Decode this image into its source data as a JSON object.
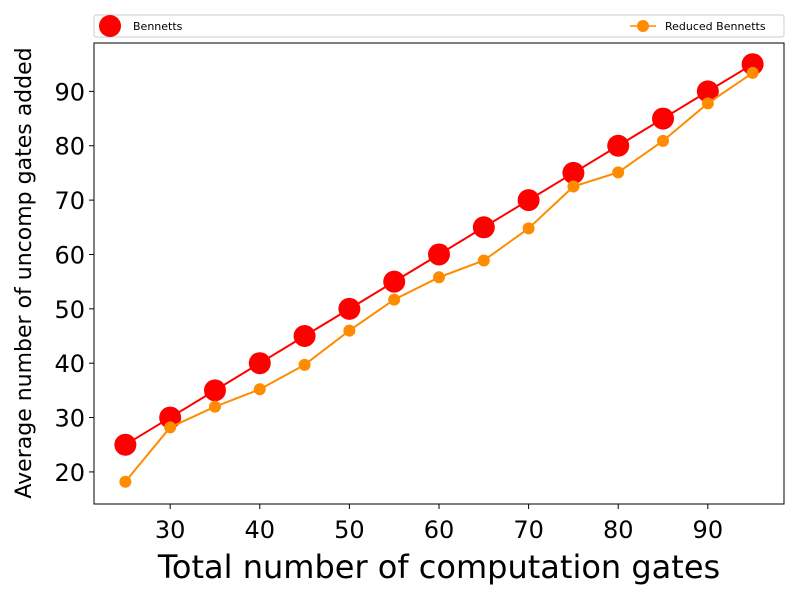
{
  "chart_data": {
    "type": "line",
    "xlabel": "Total number of computation gates",
    "ylabel": "Average number of uncomp gates added",
    "xlim": [
      21.5,
      98.5
    ],
    "ylim": [
      14.1,
      98.9
    ],
    "xticks": [
      30,
      40,
      50,
      60,
      70,
      80,
      90
    ],
    "yticks": [
      20,
      30,
      40,
      50,
      60,
      70,
      80,
      90
    ],
    "x": [
      25,
      30,
      35,
      40,
      45,
      50,
      55,
      60,
      65,
      70,
      75,
      80,
      85,
      90,
      95
    ],
    "series": [
      {
        "name": "Bennetts",
        "color": "#ff0000",
        "values": [
          25,
          30,
          35,
          40,
          45,
          50,
          55,
          60,
          65,
          70,
          75,
          80,
          85,
          90,
          95
        ]
      },
      {
        "name": "Reduced Bennetts",
        "color": "#ff8c00",
        "values": [
          18.2,
          28.2,
          32.0,
          35.2,
          39.7,
          46.0,
          51.7,
          55.8,
          58.9,
          64.8,
          72.5,
          75.1,
          80.9,
          87.8,
          93.4
        ]
      }
    ],
    "legend_position": "top",
    "grid": false
  }
}
